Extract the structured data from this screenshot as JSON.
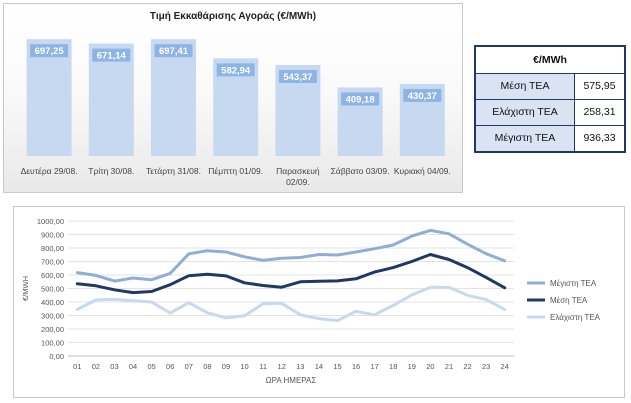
{
  "chart_data": [
    {
      "type": "bar",
      "title": "Τιμή Εκκαθάρισης Αγοράς (€/MWh)",
      "categories": [
        [
          "Δευτέρα 29/08."
        ],
        [
          "Τρίτη 30/08."
        ],
        [
          "Τετάρτη 31/08."
        ],
        [
          "Πέμπτη 01/09."
        ],
        [
          "Παρασκευή",
          "02/09."
        ],
        [
          "Σάββατο 03/09."
        ],
        [
          "Κυριακή 04/09."
        ]
      ],
      "values": [
        697.25,
        671.14,
        697.41,
        582.94,
        543.37,
        409.18,
        430.37
      ],
      "value_labels": [
        "697,25",
        "671,14",
        "697,41",
        "582,94",
        "543,37",
        "409,18",
        "430,37"
      ],
      "ylim": [
        0,
        800
      ],
      "grid": false,
      "colors": {
        "bar": "#c6d9f1",
        "label_bg": "#8eb4e3",
        "label_text": "#ffffff"
      }
    },
    {
      "type": "line",
      "xlabel": "ΩΡΑ ΗΜΕΡΑΣ",
      "ylabel": "€/MWH",
      "x": [
        "01",
        "02",
        "03",
        "04",
        "05",
        "06",
        "07",
        "08",
        "09",
        "10",
        "11",
        "12",
        "13",
        "14",
        "15",
        "16",
        "17",
        "18",
        "19",
        "20",
        "21",
        "22",
        "23",
        "24"
      ],
      "ylim": [
        0,
        1000
      ],
      "y_ticks": [
        "0,00",
        "100,00",
        "200,00",
        "300,00",
        "400,00",
        "500,00",
        "600,00",
        "700,00",
        "800,00",
        "900,00",
        "1000,00"
      ],
      "grid": true,
      "legend": "right",
      "series": [
        {
          "name": "Μέγιστη ΤΕΑ",
          "color": "#8eaed6",
          "values": [
            618,
            597,
            555,
            578,
            565,
            612,
            757,
            780,
            770,
            735,
            708,
            724,
            730,
            752,
            748,
            770,
            795,
            822,
            888,
            930,
            905,
            828,
            758,
            705
          ]
        },
        {
          "name": "Μέση ΤΕΑ",
          "color": "#1f3864",
          "values": [
            535,
            520,
            490,
            470,
            478,
            528,
            595,
            605,
            593,
            542,
            522,
            510,
            550,
            553,
            556,
            572,
            622,
            655,
            700,
            752,
            715,
            655,
            582,
            505
          ]
        },
        {
          "name": "Ελάχιστη ΤΕΑ",
          "color": "#c6d9f1",
          "values": [
            345,
            415,
            420,
            410,
            400,
            318,
            395,
            320,
            282,
            298,
            387,
            390,
            305,
            277,
            262,
            330,
            305,
            375,
            452,
            510,
            508,
            450,
            418,
            345
          ]
        }
      ]
    }
  ],
  "stats_table": {
    "header": "€/MWh",
    "rows": [
      {
        "label": "Μέση ΤΕΑ",
        "value": "575,95"
      },
      {
        "label": "Ελάχιστη ΤΕΑ",
        "value": "258,31"
      },
      {
        "label": "Μέγιστη ΤΕΑ",
        "value": "936,33"
      }
    ]
  }
}
